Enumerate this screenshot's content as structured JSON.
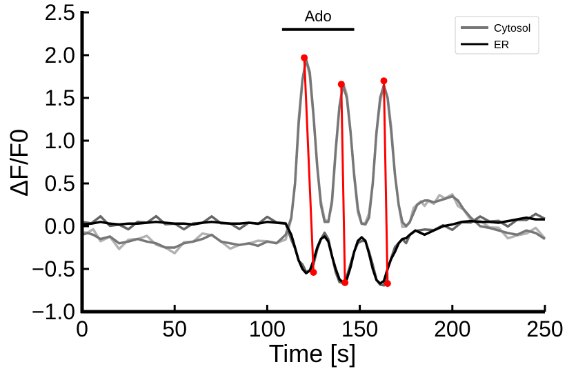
{
  "chart_data": {
    "type": "line",
    "xlabel": "Time [s]",
    "ylabel": "ΔF/F0",
    "xlim": [
      0,
      250
    ],
    "ylim": [
      -1.0,
      2.5
    ],
    "xticks": [
      0,
      50,
      100,
      150,
      200,
      250
    ],
    "yticks": [
      -1.0,
      -0.5,
      0.0,
      0.5,
      1.0,
      1.5,
      2.0,
      2.5
    ],
    "xtick_labels": [
      "0",
      "50",
      "100",
      "150",
      "200",
      "250"
    ],
    "ytick_labels": [
      "−1.0",
      "−0.5",
      "0.0",
      "0.5",
      "1.0",
      "1.5",
      "2.0",
      "2.5"
    ],
    "grid": false,
    "legend_position": "top-right",
    "annotation": {
      "text": "Ado",
      "x_start": 108,
      "x_end": 147,
      "y": 2.3
    },
    "series": [
      {
        "name": "Cytosol",
        "color": "#777777",
        "raw_color": "#aaaaaa",
        "x": [
          0,
          3,
          6,
          10,
          15,
          20,
          25,
          30,
          35,
          40,
          45,
          50,
          55,
          60,
          65,
          70,
          75,
          80,
          85,
          90,
          95,
          100,
          105,
          110,
          113,
          115,
          117,
          119,
          121,
          123,
          125,
          127,
          129,
          131,
          133,
          135,
          137,
          139,
          141,
          143,
          145,
          147,
          149,
          151,
          153,
          155,
          157,
          159,
          161,
          163,
          165,
          167,
          169,
          171,
          173,
          175,
          177,
          179,
          181,
          183,
          185,
          187,
          190,
          193,
          196,
          200,
          203,
          206,
          210,
          215,
          220,
          225,
          230,
          235,
          240,
          245,
          250
        ],
        "y": [
          -0.1,
          -0.08,
          -0.1,
          -0.15,
          -0.12,
          -0.2,
          -0.18,
          -0.15,
          -0.18,
          -0.2,
          -0.25,
          -0.25,
          -0.2,
          -0.18,
          -0.15,
          -0.1,
          -0.18,
          -0.2,
          -0.22,
          -0.2,
          -0.23,
          -0.18,
          -0.2,
          -0.1,
          0.1,
          0.5,
          1.2,
          1.7,
          1.95,
          1.8,
          1.3,
          0.7,
          0.25,
          0.05,
          0.05,
          0.3,
          0.9,
          1.4,
          1.65,
          1.5,
          1.1,
          0.6,
          0.2,
          0.03,
          0.02,
          0.1,
          0.5,
          1.1,
          1.5,
          1.65,
          1.5,
          1.1,
          0.6,
          0.25,
          0.05,
          0.0,
          0.05,
          0.15,
          0.25,
          0.28,
          0.3,
          0.3,
          0.28,
          0.3,
          0.32,
          0.35,
          0.3,
          0.2,
          0.1,
          0.0,
          -0.02,
          -0.05,
          -0.08,
          -0.1,
          -0.05,
          -0.08,
          -0.15
        ]
      },
      {
        "name": "ER",
        "color": "#000000",
        "raw_color": "#555555",
        "x": [
          0,
          5,
          10,
          15,
          20,
          25,
          30,
          35,
          40,
          45,
          50,
          55,
          60,
          65,
          70,
          75,
          80,
          85,
          90,
          95,
          100,
          105,
          110,
          113,
          115,
          117,
          119,
          121,
          123,
          125,
          127,
          129,
          131,
          133,
          135,
          137,
          139,
          141,
          143,
          145,
          147,
          149,
          151,
          153,
          155,
          157,
          159,
          161,
          163,
          165,
          167,
          169,
          171,
          173,
          175,
          177,
          180,
          185,
          190,
          195,
          200,
          205,
          210,
          215,
          220,
          225,
          230,
          235,
          240,
          245,
          250
        ],
        "y": [
          0.02,
          0.03,
          0.05,
          0.03,
          0.02,
          0.03,
          0.03,
          0.04,
          0.05,
          0.04,
          0.03,
          0.03,
          0.02,
          0.04,
          0.05,
          0.04,
          0.03,
          0.03,
          0.04,
          0.03,
          0.05,
          0.04,
          0.03,
          -0.1,
          -0.25,
          -0.4,
          -0.5,
          -0.55,
          -0.52,
          -0.4,
          -0.25,
          -0.15,
          -0.12,
          -0.18,
          -0.35,
          -0.5,
          -0.62,
          -0.66,
          -0.62,
          -0.48,
          -0.3,
          -0.17,
          -0.13,
          -0.17,
          -0.32,
          -0.5,
          -0.63,
          -0.67,
          -0.64,
          -0.5,
          -0.38,
          -0.3,
          -0.2,
          -0.15,
          -0.14,
          -0.1,
          -0.05,
          -0.1,
          -0.05,
          0.0,
          0.02,
          0.05,
          0.06,
          0.05,
          0.05,
          0.04,
          0.06,
          0.08,
          0.1,
          0.08,
          0.08
        ]
      }
    ],
    "peak_points": {
      "color": "#ff0000",
      "cytosol_peaks": [
        [
          120,
          1.97
        ],
        [
          140,
          1.66
        ],
        [
          163,
          1.7
        ]
      ],
      "er_troughs": [
        [
          125,
          -0.54
        ],
        [
          142,
          -0.66
        ],
        [
          165,
          -0.67
        ]
      ]
    }
  }
}
